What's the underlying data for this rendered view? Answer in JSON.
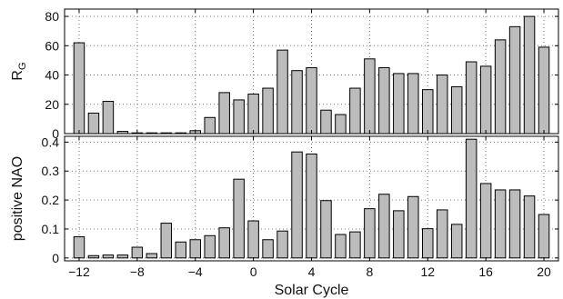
{
  "chart_data": {
    "type": "bar",
    "shared_x": {
      "label": "Solar Cycle",
      "categories": [
        -12,
        -11,
        -10,
        -9,
        -8,
        -7,
        -6,
        -5,
        -4,
        -3,
        -2,
        -1,
        0,
        1,
        2,
        3,
        4,
        5,
        6,
        7,
        8,
        9,
        10,
        11,
        12,
        13,
        14,
        15,
        16,
        17,
        18,
        19,
        20
      ],
      "ticks": [
        -12,
        -8,
        -4,
        0,
        4,
        8,
        12,
        16,
        20
      ],
      "tick_labels": [
        "−12",
        "−8",
        "−4",
        "0",
        "4",
        "8",
        "12",
        "16",
        "20"
      ],
      "xlim": [
        -13,
        21
      ]
    },
    "panels": [
      {
        "ylabel_main": "R",
        "ylabel_sub": "G",
        "ylim": [
          0,
          85
        ],
        "yticks": [
          0,
          20,
          40,
          60,
          80
        ],
        "ytick_labels": [
          "0",
          "20",
          "40",
          "60",
          "80"
        ],
        "values": [
          62,
          14,
          22,
          1.5,
          0.5,
          0.5,
          0.5,
          0.5,
          2,
          11,
          28,
          23,
          27,
          31,
          57,
          43,
          45,
          16,
          13,
          31,
          51,
          45,
          41,
          41,
          30,
          40,
          32,
          49,
          46,
          64,
          73,
          80,
          59
        ]
      },
      {
        "ylabel_main": "positive NAO",
        "ylim": [
          -0.01,
          0.42
        ],
        "yticks": [
          0,
          0.1,
          0.2,
          0.3,
          0.4
        ],
        "ytick_labels": [
          "0",
          "0.1",
          "0.2",
          "0.3",
          "0.4"
        ],
        "values": [
          0.073,
          0.008,
          0.01,
          0.01,
          0.037,
          0.015,
          0.12,
          0.055,
          0.063,
          0.077,
          0.104,
          0.272,
          0.128,
          0.063,
          0.093,
          0.366,
          0.359,
          0.198,
          0.081,
          0.09,
          0.17,
          0.22,
          0.163,
          0.212,
          0.101,
          0.166,
          0.116,
          0.41,
          0.257,
          0.235,
          0.235,
          0.214,
          0.15
        ]
      }
    ],
    "grid": true
  }
}
